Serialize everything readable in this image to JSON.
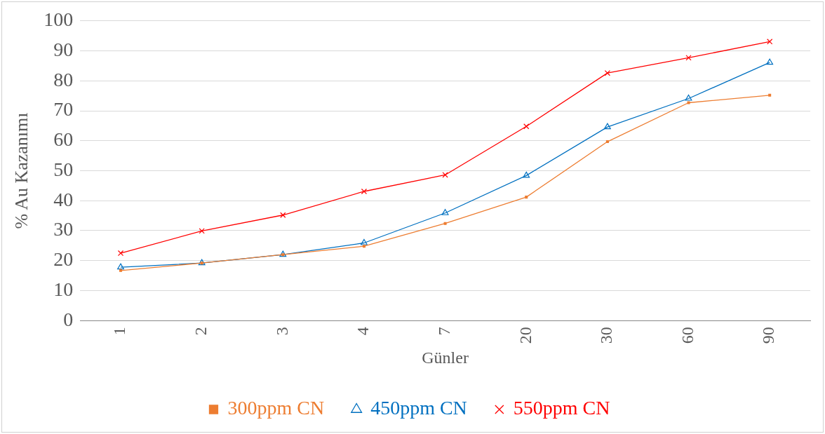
{
  "chart_data": {
    "type": "line",
    "xlabel": "Günler",
    "ylabel": "% Au Kazanımı",
    "categories": [
      "1",
      "2",
      "3",
      "4",
      "7",
      "20",
      "30",
      "60",
      "90"
    ],
    "series": [
      {
        "name": "300ppm CN",
        "color": "#ed7d31",
        "marker": "square",
        "values": [
          16.7,
          19.2,
          22,
          24.8,
          32.4,
          41.2,
          59.7,
          72.7,
          75.2
        ]
      },
      {
        "name": "450ppm CN",
        "color": "#0070c0",
        "marker": "triangle",
        "values": [
          17.8,
          19.2,
          22,
          25.9,
          35.9,
          48.4,
          64.6,
          74.1,
          86.1
        ]
      },
      {
        "name": "550ppm CN",
        "color": "#ff0000",
        "marker": "cross",
        "values": [
          22.5,
          29.9,
          35.2,
          43.1,
          48.6,
          64.8,
          82.6,
          87.7,
          93.1
        ]
      }
    ],
    "ylim": [
      0,
      100
    ],
    "yticks": [
      0,
      10,
      20,
      30,
      40,
      50,
      60,
      70,
      80,
      90,
      100
    ],
    "grid": "y",
    "legend": "bottom",
    "line_style": "solid"
  }
}
